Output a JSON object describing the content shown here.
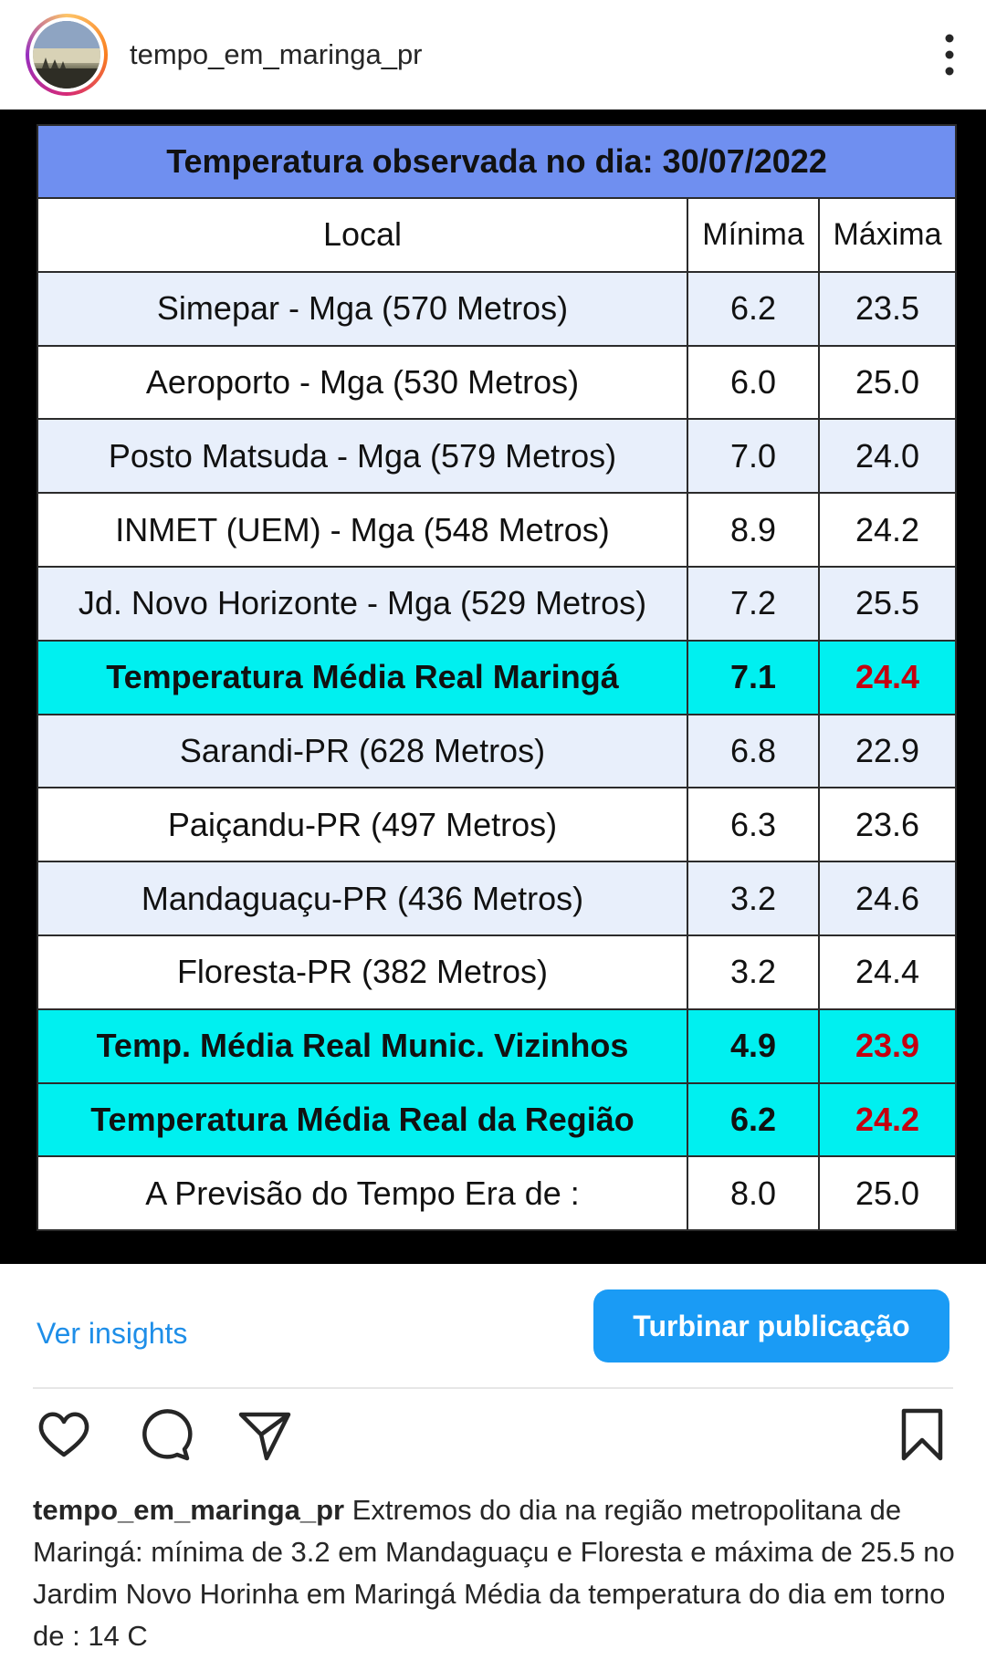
{
  "header": {
    "username": "tempo_em_maringa_pr"
  },
  "table": {
    "title": "Temperatura observada no dia: 30/07/2022",
    "headers": {
      "local": "Local",
      "min": "Mínima",
      "max": "Máxima"
    },
    "rows": [
      {
        "local": "Simepar - Mga  (570 Metros)",
        "min": "6.2",
        "max": "23.5"
      },
      {
        "local": "Aeroporto - Mga (530 Metros)",
        "min": "6.0",
        "max": "25.0"
      },
      {
        "local": "Posto Matsuda - Mga (579 Metros)",
        "min": "7.0",
        "max": "24.0"
      },
      {
        "local": "INMET (UEM) - Mga  (548 Metros)",
        "min": "8.9",
        "max": "24.2"
      },
      {
        "local": "Jd. Novo Horizonte - Mga (529 Metros)",
        "min": "7.2",
        "max": "25.5"
      },
      {
        "local": "Temperatura Média Real Maringá",
        "min": "7.1",
        "max": "24.4"
      },
      {
        "local": "Sarandi-PR  (628 Metros)",
        "min": "6.8",
        "max": "22.9"
      },
      {
        "local": "Paiçandu-PR (497 Metros)",
        "min": "6.3",
        "max": "23.6"
      },
      {
        "local": "Mandaguaçu-PR (436 Metros)",
        "min": "3.2",
        "max": "24.6"
      },
      {
        "local": "Floresta-PR (382 Metros)",
        "min": "3.2",
        "max": "24.4"
      },
      {
        "local": "Temp. Média Real Munic. Vizinhos",
        "min": "4.9",
        "max": "23.9"
      },
      {
        "local": "Temperatura Média Real da Região",
        "min": "6.2",
        "max": "24.2"
      },
      {
        "local": "A Previsão do Tempo Era de :",
        "min": "8.0",
        "max": "25.0"
      }
    ]
  },
  "actions": {
    "insights_label": "Ver insights",
    "boost_label": "Turbinar publicação"
  },
  "icons": {
    "like": "heart-icon",
    "comment": "comment-icon",
    "share": "share-icon",
    "save": "bookmark-icon",
    "menu": "more-vertical-icon"
  },
  "caption": {
    "username": "tempo_em_maringa_pr",
    "text": " Extremos do dia na região metropolitana de Maringá: mínima de 3.2 em Mandaguaçu e Floresta e máxima de 25.5 no Jardim Novo Horinha em Maringá  Média da temperatura do dia em torno de : 14 C"
  },
  "colors": {
    "title_bg": "#6f8ff0",
    "highlight_bg": "#00f0f0",
    "alt_row_bg": "#e8effb",
    "min_text": "#1b1bd9",
    "max_text": "#e0141c",
    "link": "#1e8ee8",
    "button": "#1a9bf5"
  }
}
